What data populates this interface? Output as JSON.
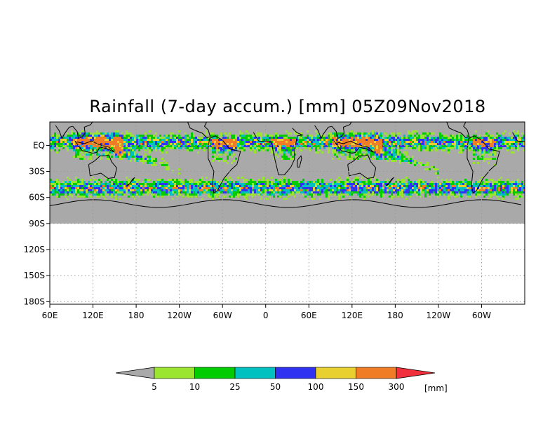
{
  "title": "Rainfall (7-day accum.) [mm] 05Z09Nov2018",
  "lat_ticks": [
    {
      "label": "EQ",
      "value": 0
    },
    {
      "label": "30S",
      "value": -30
    },
    {
      "label": "60S",
      "value": -60
    },
    {
      "label": "90S",
      "value": -90
    },
    {
      "label": "120S",
      "value": -120
    },
    {
      "label": "150S",
      "value": -150
    },
    {
      "label": "180S",
      "value": -180
    }
  ],
  "lon_ticks": [
    {
      "label": "60E",
      "value": 60
    },
    {
      "label": "120E",
      "value": 120
    },
    {
      "label": "180",
      "value": 180
    },
    {
      "label": "120W",
      "value": 240
    },
    {
      "label": "60W",
      "value": 300
    },
    {
      "label": "0",
      "value": 360
    },
    {
      "label": "60E",
      "value": 420
    },
    {
      "label": "120E",
      "value": 480
    },
    {
      "label": "180",
      "value": 540
    },
    {
      "label": "120W",
      "value": 600
    },
    {
      "label": "60W",
      "value": 660
    }
  ],
  "lat_range": [
    -183,
    27
  ],
  "lon_range": [
    60,
    720
  ],
  "data_lat_min": -90,
  "grid": "dotted",
  "colorbar": {
    "under_color": "#a9a9a9",
    "over_color": "#f0303c",
    "colors": [
      "#9be530",
      "#00cc00",
      "#00c0c0",
      "#2f32f0",
      "#e8d030",
      "#f07d25"
    ],
    "labels": [
      "5",
      "10",
      "25",
      "50",
      "100",
      "150",
      "300"
    ],
    "unit": "[mm]"
  },
  "legend_colors": {
    "no_rain": "#a9a9a9",
    "land": "#000000"
  }
}
